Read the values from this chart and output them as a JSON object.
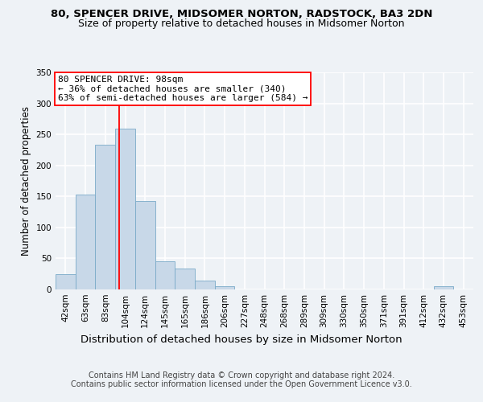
{
  "title1": "80, SPENCER DRIVE, MIDSOMER NORTON, RADSTOCK, BA3 2DN",
  "title2": "Size of property relative to detached houses in Midsomer Norton",
  "xlabel": "Distribution of detached houses by size in Midsomer Norton",
  "ylabel": "Number of detached properties",
  "footnote": "Contains HM Land Registry data © Crown copyright and database right 2024.\nContains public sector information licensed under the Open Government Licence v3.0.",
  "categories": [
    "42sqm",
    "63sqm",
    "83sqm",
    "104sqm",
    "124sqm",
    "145sqm",
    "165sqm",
    "186sqm",
    "206sqm",
    "227sqm",
    "248sqm",
    "268sqm",
    "289sqm",
    "309sqm",
    "330sqm",
    "350sqm",
    "371sqm",
    "391sqm",
    "412sqm",
    "432sqm",
    "453sqm"
  ],
  "values": [
    25,
    153,
    233,
    259,
    143,
    46,
    34,
    14,
    5,
    0,
    0,
    0,
    0,
    0,
    0,
    0,
    0,
    0,
    0,
    5,
    0
  ],
  "bar_color": "#c8d8e8",
  "bar_edge_color": "#7aaac8",
  "marker_label1": "80 SPENCER DRIVE: 98sqm",
  "marker_label2": "← 36% of detached houses are smaller (340)",
  "marker_label3": "63% of semi-detached houses are larger (584) →",
  "marker_color": "red",
  "ylim": [
    0,
    350
  ],
  "yticks": [
    0,
    50,
    100,
    150,
    200,
    250,
    300,
    350
  ],
  "background_color": "#eef2f6",
  "grid_color": "#ffffff",
  "title1_fontsize": 9.5,
  "title2_fontsize": 9,
  "xlabel_fontsize": 9.5,
  "ylabel_fontsize": 8.5,
  "tick_fontsize": 7.5,
  "footnote_fontsize": 7,
  "annot_fontsize": 8
}
